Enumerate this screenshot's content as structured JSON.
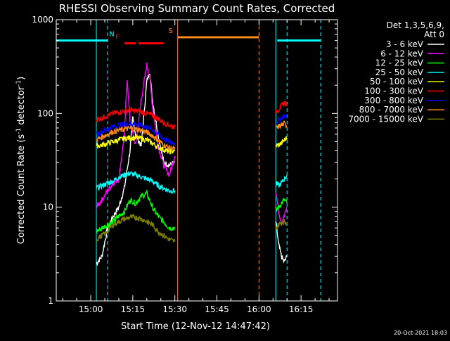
{
  "chart_data": {
    "type": "line",
    "title": "RHESSI Observing Summary Count Rates, Corrected",
    "xlabel": "Start Time (12-Nov-12 14:47:42)",
    "ylabel": "Corrected Count Rate (s⁻¹ detector⁻¹)",
    "ylabel_parts": [
      "Corrected Count Rate (s",
      "-1",
      " detector",
      "-1",
      ")"
    ],
    "y_scale": "log",
    "ylim": [
      1,
      1000
    ],
    "x_start": "14:47:42",
    "x_end": "16:28:00",
    "x_tick_labels": [
      "15:00",
      "15:15",
      "15:30",
      "15:45",
      "16:00",
      "16:15"
    ],
    "y_tick_labels": [
      "1",
      "10",
      "100",
      "1000"
    ],
    "legend_header": [
      "Det 1,3,5,6,9,",
      "Att 0"
    ],
    "legend_position": "top-right",
    "timestamp": "20-Oct-2021 18:03",
    "observing_periods": [
      [
        "15:02:00",
        "15:31:00"
      ],
      [
        "16:06:00",
        "16:10:00"
      ]
    ],
    "flag_markers": [
      {
        "label": "N",
        "color": "#00ffff",
        "segments": [
          [
            "14:47:42",
            "15:06:00"
          ],
          [
            "16:06:30",
            "16:22:00"
          ]
        ],
        "level": 600
      },
      {
        "label": "F",
        "color": "#ff0000",
        "segments": [
          [
            "15:12:00",
            "15:16:00"
          ],
          [
            "15:17:00",
            "15:26:00"
          ]
        ],
        "level": 560
      },
      {
        "label": "S",
        "color": "#ff8c1a",
        "segments": [
          [
            "15:31:00",
            "16:00:00"
          ]
        ],
        "level": 650
      }
    ],
    "event_lines": [
      {
        "time": "15:02:00",
        "color": "#00ffff",
        "style": "solid"
      },
      {
        "time": "15:06:00",
        "color": "#00ffff",
        "style": "dashed"
      },
      {
        "time": "15:31:00",
        "color": "#ff8c1a",
        "style": "solid"
      },
      {
        "time": "16:00:00",
        "color": "#ff8c1a",
        "style": "dashed"
      },
      {
        "time": "16:06:00",
        "color": "#00ffff",
        "style": "solid"
      },
      {
        "time": "16:10:00",
        "color": "#00ffff",
        "style": "dashed"
      },
      {
        "time": "16:22:00",
        "color": "#00ffff",
        "style": "dashed"
      }
    ],
    "series": [
      {
        "name": "3 - 6 keV",
        "color": "#ffffff",
        "segments": [
          [
            [
              "15:02",
              "2.5"
            ],
            [
              "15:04",
              "3"
            ],
            [
              "15:06",
              "6"
            ],
            [
              "15:08",
              "8"
            ],
            [
              "15:10",
              "10"
            ],
            [
              "15:12",
              "16"
            ],
            [
              "15:14",
              "40"
            ],
            [
              "15:15",
              "90"
            ],
            [
              "15:16",
              "60"
            ],
            [
              "15:18",
              "45"
            ],
            [
              "15:20",
              "220"
            ],
            [
              "15:21",
              "280"
            ],
            [
              "15:22",
              "140"
            ],
            [
              "15:24",
              "60"
            ],
            [
              "15:26",
              "30"
            ],
            [
              "15:28",
              "28"
            ],
            [
              "15:30",
              "30"
            ]
          ],
          [
            [
              "16:06",
              "7"
            ],
            [
              "16:07",
              "4"
            ],
            [
              "16:08",
              "3"
            ],
            [
              "16:09",
              "2.6"
            ],
            [
              "16:10",
              "3"
            ]
          ]
        ]
      },
      {
        "name": "6 - 12 keV",
        "color": "#ff00ff",
        "segments": [
          [
            [
              "15:02",
              "10"
            ],
            [
              "15:04",
              "12"
            ],
            [
              "15:06",
              "15"
            ],
            [
              "15:08",
              "18"
            ],
            [
              "15:10",
              "20"
            ],
            [
              "15:12",
              "60"
            ],
            [
              "15:13",
              "240"
            ],
            [
              "15:14",
              "80"
            ],
            [
              "15:16",
              "45"
            ],
            [
              "15:18",
              "140"
            ],
            [
              "15:20",
              "330"
            ],
            [
              "15:21",
              "250"
            ],
            [
              "15:22",
              "120"
            ],
            [
              "15:24",
              "45"
            ],
            [
              "15:26",
              "28"
            ],
            [
              "15:28",
              "22"
            ],
            [
              "15:30",
              "35"
            ]
          ],
          [
            [
              "16:06",
              "15"
            ],
            [
              "16:07",
              "9"
            ],
            [
              "16:08",
              "7"
            ],
            [
              "16:09",
              "8"
            ],
            [
              "16:10",
              "10"
            ]
          ]
        ]
      },
      {
        "name": "12 - 25 keV",
        "color": "#00ff00",
        "segments": [
          [
            [
              "15:02",
              "5.5"
            ],
            [
              "15:04",
              "6"
            ],
            [
              "15:06",
              "6.5"
            ],
            [
              "15:08",
              "7"
            ],
            [
              "15:10",
              "8"
            ],
            [
              "15:12",
              "9"
            ],
            [
              "15:14",
              "12"
            ],
            [
              "15:16",
              "11"
            ],
            [
              "15:18",
              "13"
            ],
            [
              "15:20",
              "14"
            ],
            [
              "15:22",
              "10"
            ],
            [
              "15:24",
              "8"
            ],
            [
              "15:26",
              "7"
            ],
            [
              "15:28",
              "6"
            ],
            [
              "15:30",
              "6"
            ]
          ],
          [
            [
              "16:06",
              "9"
            ],
            [
              "16:07",
              "10"
            ],
            [
              "16:08",
              "11"
            ],
            [
              "16:09",
              "12"
            ],
            [
              "16:10",
              "11"
            ]
          ]
        ]
      },
      {
        "name": "25 - 50 keV",
        "color": "#00ffff",
        "segments": [
          [
            [
              "15:02",
              "16"
            ],
            [
              "15:04",
              "17"
            ],
            [
              "15:06",
              "18"
            ],
            [
              "15:08",
              "19"
            ],
            [
              "15:10",
              "21"
            ],
            [
              "15:12",
              "22"
            ],
            [
              "15:14",
              "23"
            ],
            [
              "15:16",
              "22"
            ],
            [
              "15:18",
              "21"
            ],
            [
              "15:20",
              "20"
            ],
            [
              "15:22",
              "19"
            ],
            [
              "15:24",
              "17"
            ],
            [
              "15:26",
              "16"
            ],
            [
              "15:28",
              "15"
            ],
            [
              "15:30",
              "15"
            ]
          ],
          [
            [
              "16:06",
              "18"
            ],
            [
              "16:07",
              "17"
            ],
            [
              "16:08",
              "18"
            ],
            [
              "16:09",
              "20"
            ],
            [
              "16:10",
              "22"
            ]
          ]
        ]
      },
      {
        "name": "50 - 100 keV",
        "color": "#ffff00",
        "segments": [
          [
            [
              "15:02",
              "45"
            ],
            [
              "15:04",
              "46"
            ],
            [
              "15:06",
              "48"
            ],
            [
              "15:08",
              "50"
            ],
            [
              "15:10",
              "52"
            ],
            [
              "15:12",
              "54"
            ],
            [
              "15:14",
              "55"
            ],
            [
              "15:16",
              "55"
            ],
            [
              "15:18",
              "54"
            ],
            [
              "15:20",
              "52"
            ],
            [
              "15:22",
              "48"
            ],
            [
              "15:24",
              "44"
            ],
            [
              "15:26",
              "41"
            ],
            [
              "15:28",
              "39"
            ],
            [
              "15:30",
              "40"
            ]
          ],
          [
            [
              "16:06",
              "45"
            ],
            [
              "16:07",
              "46"
            ],
            [
              "16:08",
              "48"
            ],
            [
              "16:09",
              "52"
            ],
            [
              "16:10",
              "55"
            ]
          ]
        ]
      },
      {
        "name": "100 - 300 keV",
        "color": "#ff0000",
        "segments": [
          [
            [
              "15:02",
              "85"
            ],
            [
              "15:04",
              "90"
            ],
            [
              "15:06",
              "95"
            ],
            [
              "15:08",
              "100"
            ],
            [
              "15:10",
              "103"
            ],
            [
              "15:12",
              "106"
            ],
            [
              "15:14",
              "108"
            ],
            [
              "15:16",
              "106"
            ],
            [
              "15:18",
              "104"
            ],
            [
              "15:20",
              "100"
            ],
            [
              "15:22",
              "95"
            ],
            [
              "15:24",
              "88"
            ],
            [
              "15:26",
              "80"
            ],
            [
              "15:28",
              "75"
            ],
            [
              "15:30",
              "72"
            ]
          ],
          [
            [
              "16:06",
              "105"
            ],
            [
              "16:07",
              "110"
            ],
            [
              "16:08",
              "120"
            ],
            [
              "16:09",
              "130"
            ],
            [
              "16:10",
              "125"
            ]
          ]
        ]
      },
      {
        "name": "300 - 800 keV",
        "color": "#0000ff",
        "segments": [
          [
            [
              "15:02",
              "60"
            ],
            [
              "15:04",
              "64"
            ],
            [
              "15:06",
              "68"
            ],
            [
              "15:08",
              "72"
            ],
            [
              "15:10",
              "75"
            ],
            [
              "15:12",
              "77"
            ],
            [
              "15:14",
              "78"
            ],
            [
              "15:16",
              "77"
            ],
            [
              "15:18",
              "75"
            ],
            [
              "15:20",
              "72"
            ],
            [
              "15:22",
              "67"
            ],
            [
              "15:24",
              "60"
            ],
            [
              "15:26",
              "54"
            ],
            [
              "15:28",
              "50"
            ],
            [
              "15:30",
              "48"
            ]
          ],
          [
            [
              "16:06",
              "80"
            ],
            [
              "16:07",
              "85"
            ],
            [
              "16:08",
              "90"
            ],
            [
              "16:09",
              "95"
            ],
            [
              "16:10",
              "90"
            ]
          ]
        ]
      },
      {
        "name": "800 - 7000 keV",
        "color": "#ff8c1a",
        "segments": [
          [
            [
              "15:02",
              "52"
            ],
            [
              "15:04",
              "56"
            ],
            [
              "15:06",
              "60"
            ],
            [
              "15:08",
              "64"
            ],
            [
              "15:10",
              "66"
            ],
            [
              "15:12",
              "68"
            ],
            [
              "15:14",
              "69"
            ],
            [
              "15:16",
              "68"
            ],
            [
              "15:18",
              "66"
            ],
            [
              "15:20",
              "63"
            ],
            [
              "15:22",
              "58"
            ],
            [
              "15:24",
              "52"
            ],
            [
              "15:26",
              "46"
            ],
            [
              "15:28",
              "43"
            ],
            [
              "15:30",
              "42"
            ]
          ],
          [
            [
              "16:06",
              "70"
            ],
            [
              "16:07",
              "72"
            ],
            [
              "16:08",
              "75"
            ],
            [
              "16:09",
              "78"
            ],
            [
              "16:10",
              "74"
            ]
          ]
        ]
      },
      {
        "name": "7000 - 15000 keV",
        "color": "#808000",
        "segments": [
          [
            [
              "15:02",
              "4.5"
            ],
            [
              "15:04",
              "5"
            ],
            [
              "15:06",
              "5.5"
            ],
            [
              "15:08",
              "6.5"
            ],
            [
              "15:10",
              "7"
            ],
            [
              "15:12",
              "7.5"
            ],
            [
              "15:14",
              "7.8"
            ],
            [
              "15:16",
              "7.8"
            ],
            [
              "15:18",
              "7.5"
            ],
            [
              "15:20",
              "7"
            ],
            [
              "15:22",
              "6.5"
            ],
            [
              "15:24",
              "5.5"
            ],
            [
              "15:26",
              "5"
            ],
            [
              "15:28",
              "4.5"
            ],
            [
              "15:30",
              "4.3"
            ]
          ],
          [
            [
              "16:06",
              "6"
            ],
            [
              "16:07",
              "6.5"
            ],
            [
              "16:08",
              "6.8"
            ],
            [
              "16:09",
              "7"
            ],
            [
              "16:10",
              "6.8"
            ]
          ]
        ]
      }
    ]
  }
}
